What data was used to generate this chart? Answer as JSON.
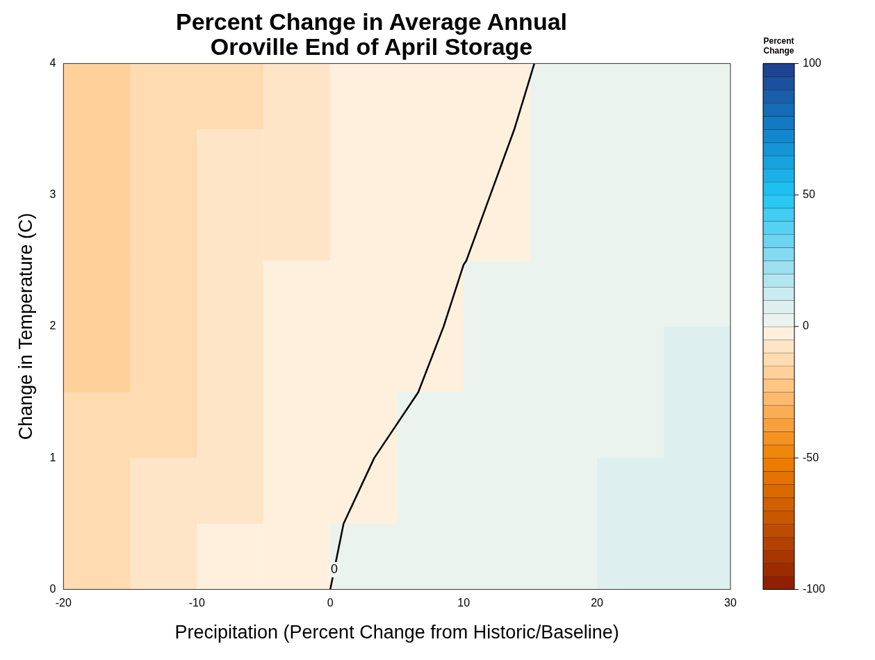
{
  "chart_data": {
    "type": "heatmap",
    "title": "Percent Change in Average Annual\nOroville End of April Storage",
    "xlabel": "Precipitation (Percent Change from Historic/Baseline)",
    "ylabel": "Change in Temperature (C)",
    "clabel": "Percent Change",
    "xlim": [
      -20,
      30
    ],
    "xticks": [
      -20,
      -10,
      0,
      10,
      20,
      30
    ],
    "ylim": [
      0,
      4
    ],
    "yticks": [
      0,
      1,
      2,
      3,
      4
    ],
    "clim": [
      -100,
      100
    ],
    "cticks": [
      -100,
      -50,
      0,
      50,
      100
    ],
    "grid": false,
    "legend": false,
    "cells": [
      [
        -20,
        -15,
        -11,
        -7,
        -4,
        -2.5,
        -1,
        0.5,
        1.5,
        2.5
      ],
      [
        -19,
        -14,
        -10,
        -6,
        -3,
        -2,
        -0.5,
        1,
        2,
        3
      ],
      [
        -18,
        -13,
        -9,
        -6,
        -3,
        -1,
        0,
        2,
        3,
        4
      ],
      [
        -17,
        -12,
        -8,
        -5,
        -2,
        -0.5,
        1,
        2,
        3,
        4
      ],
      [
        -16,
        -12,
        -8,
        -4,
        -1,
        0,
        1.5,
        3,
        4,
        5
      ],
      [
        -15,
        -11,
        -7,
        -3,
        -1,
        1,
        2,
        3,
        4,
        5.5
      ],
      [
        -14,
        -10,
        -6,
        -3,
        0,
        2,
        3,
        4,
        5,
        6
      ],
      [
        -13,
        -9,
        -5,
        -2,
        1,
        2.5,
        3.5,
        4.5,
        5.5,
        7
      ]
    ],
    "series": [
      {
        "type": "line",
        "color": "#000000",
        "x": [
          0,
          1,
          3.3,
          6.6,
          8.5,
          10,
          10.2,
          12,
          13.8,
          15.3
        ],
        "values": [
          0,
          0.5,
          1,
          1.5,
          2,
          2.47,
          2.5,
          3,
          3.5,
          4
        ]
      }
    ],
    "annotations": [
      {
        "text": "0",
        "x": 0.3,
        "y": 0.15
      }
    ]
  }
}
